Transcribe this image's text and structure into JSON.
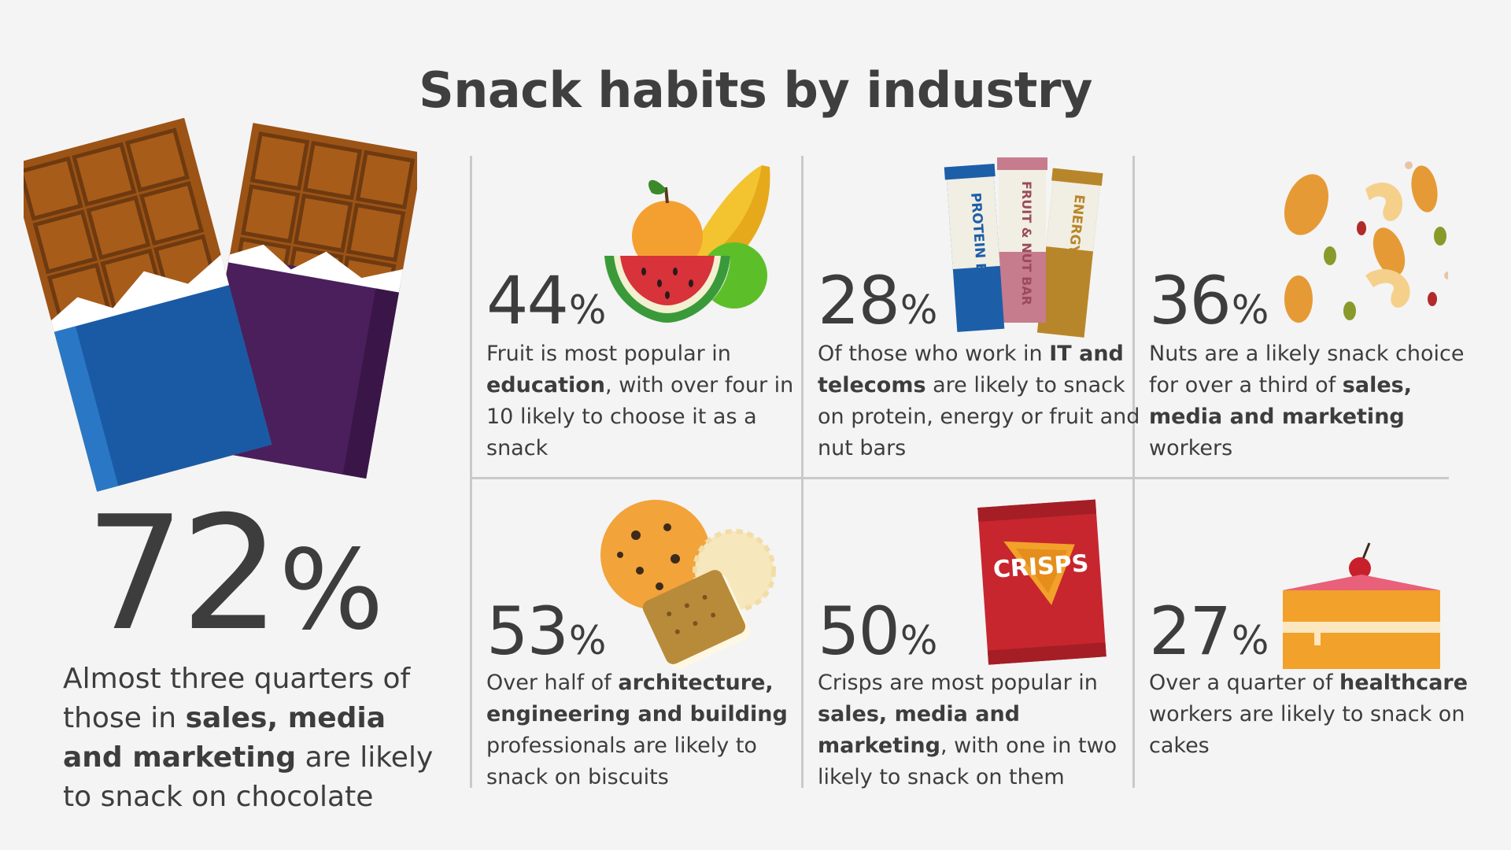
{
  "title": "Snack habits by industry",
  "colors": {
    "text": "#3d3d3d",
    "background": "#f4f4f4",
    "divider": "#c9c9c9"
  },
  "main_stat": {
    "value": "72",
    "unit": "%",
    "text_1": "Almost three quarters of those in ",
    "bold": "sales, media and marketing",
    "text_2": " are likely  to snack on chocolate",
    "icon": "chocolate-bars-icon"
  },
  "cells": [
    {
      "value": "44",
      "unit": "%",
      "text_1": "Fruit is most popular in ",
      "bold": "education",
      "text_2": ", with over four in 10 likely to choose it as a snack",
      "icon": "fruit-icon"
    },
    {
      "value": "28",
      "unit": "%",
      "text_1": "Of those who work in ",
      "bold": "IT and telecoms",
      "text_2": " are likely to snack on protein, energy or fruit and nut bars",
      "icon": "snack-bars-icon",
      "bar_labels": [
        "PROTEIN BAR",
        "FRUIT & NUT BAR",
        "ENERGY BAR"
      ]
    },
    {
      "value": "36",
      "unit": "%",
      "text_1": "Nuts are a likely snack choice for over a third of ",
      "bold": "sales, media and marketing",
      "text_2": " workers",
      "icon": "nuts-icon"
    },
    {
      "value": "53",
      "unit": "%",
      "text_1": "Over half of ",
      "bold": "architecture, engineering and building",
      "text_2": " professionals are likely to snack on biscuits",
      "icon": "biscuits-icon"
    },
    {
      "value": "50",
      "unit": "%",
      "text_1": "Crisps are most popular in ",
      "bold": "sales, media and marketing",
      "text_2": ", with one in two likely to snack on them",
      "icon": "crisps-icon",
      "bag_label": "CRISPS"
    },
    {
      "value": "27",
      "unit": "%",
      "text_1": "Over a quarter of ",
      "bold": "healthcare",
      "text_2": " workers are likely to snack on cakes",
      "icon": "cake-icon"
    }
  ]
}
